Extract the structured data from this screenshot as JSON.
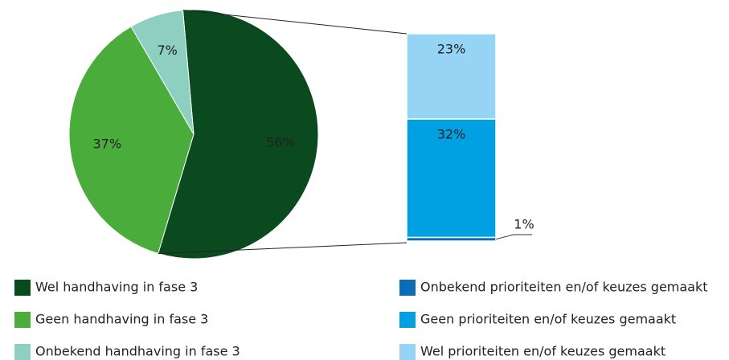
{
  "chart_data": [
    {
      "type": "pie",
      "categories": [
        "Wel handhaving in fase 3",
        "Geen handhaving in fase 3",
        "Onbekend handhaving in fase 3"
      ],
      "values": [
        56,
        37,
        7
      ],
      "value_labels": [
        "56%",
        "37%",
        "7%"
      ],
      "colors": [
        "#0b4a1f",
        "#4aac3b",
        "#8dcfc1"
      ]
    },
    {
      "type": "bar",
      "stacked": true,
      "series": [
        {
          "name": "Onbekend prioriteiten en/of keuzes gemaakt",
          "color": "#0b6db5",
          "values": [
            1
          ],
          "value_labels": [
            "1%"
          ]
        },
        {
          "name": "Geen prioriteiten en/of keuzes gemaakt",
          "color": "#00a0e3",
          "values": [
            32
          ],
          "value_labels": [
            "32%"
          ]
        },
        {
          "name": "Wel prioriteiten en/of keuzes gemaakt",
          "color": "#95d4f4",
          "values": [
            23
          ],
          "value_labels": [
            "23%"
          ]
        }
      ]
    }
  ]
}
